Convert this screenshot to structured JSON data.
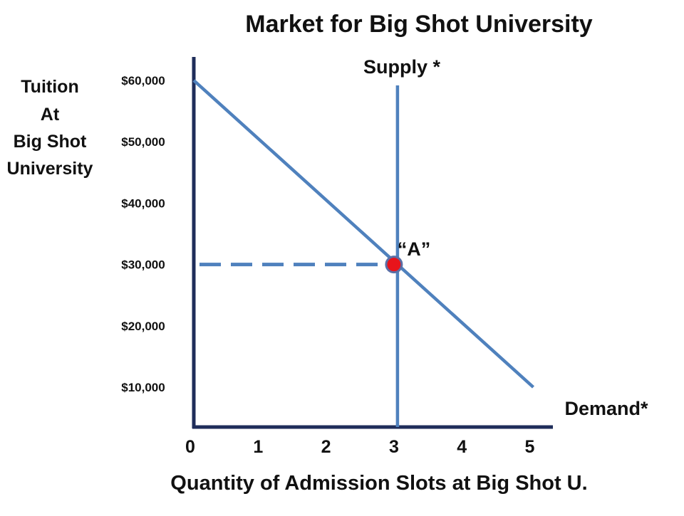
{
  "chart_data": {
    "type": "line",
    "title": "Market for Big Shot University",
    "ylabel_lines": [
      "Tuition",
      "At",
      "Big Shot",
      "University"
    ],
    "xlabel": "Quantity of Admission Slots at Big Shot U.",
    "y_ticks": [
      {
        "value": 60000,
        "label": "$60,000"
      },
      {
        "value": 50000,
        "label": "$50,000"
      },
      {
        "value": 40000,
        "label": "$40,000"
      },
      {
        "value": 30000,
        "label": "$30,000"
      },
      {
        "value": 20000,
        "label": "$20,000"
      },
      {
        "value": 10000,
        "label": "$10,000"
      }
    ],
    "x_ticks": [
      {
        "value": 0,
        "label": "0"
      },
      {
        "value": 1,
        "label": "1"
      },
      {
        "value": 2,
        "label": "2"
      },
      {
        "value": 3,
        "label": "3"
      },
      {
        "value": 4,
        "label": "4"
      },
      {
        "value": 5,
        "label": "5"
      }
    ],
    "xlim": [
      0,
      5.3
    ],
    "ylim": [
      5000,
      62000
    ],
    "grid": false,
    "series": [
      {
        "name": "Demand*",
        "color": "#4F81BD",
        "points": [
          {
            "x": 0,
            "y": 60000
          },
          {
            "x": 5,
            "y": 10000
          }
        ]
      },
      {
        "name": "Supply *",
        "color": "#4F81BD",
        "points": [
          {
            "x": 3,
            "y": 5000
          },
          {
            "x": 3,
            "y": 60000
          }
        ]
      }
    ],
    "reference_lines": [
      {
        "style": "dashed",
        "color": "#4F81BD",
        "from": {
          "x": 0,
          "y": 30000
        },
        "to": {
          "x": 3,
          "y": 30000
        }
      }
    ],
    "annotations": [
      {
        "label": "“A”",
        "x": 3,
        "y": 30000,
        "marker_color": "#E8141B",
        "marker_stroke": "#5B6FA6"
      }
    ],
    "axis_color": "#1F2D5A"
  }
}
